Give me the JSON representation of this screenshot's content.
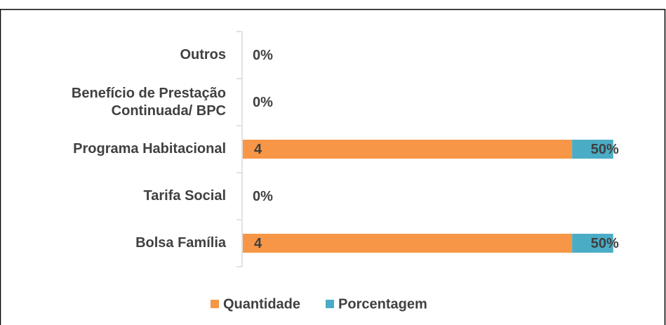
{
  "chart_data": {
    "type": "stacked-bar-horizontal",
    "categories": [
      "Outros",
      "Benefício de Prestação Continuada/ BPC",
      "Programa Habitacional",
      "Tarifa Social",
      "Bolsa Família"
    ],
    "series": [
      {
        "name": "Quantidade",
        "color": "#f79646",
        "values": [
          0,
          0,
          4,
          0,
          4
        ]
      },
      {
        "name": "Porcentagem",
        "color": "#4bacc6",
        "values": [
          0,
          0,
          0.5,
          0,
          0.5
        ],
        "value_labels": [
          "0%",
          "0%",
          "50%",
          "0%",
          "50%"
        ]
      }
    ],
    "xlim": [
      0,
      4.8
    ],
    "legend": "bottom"
  }
}
